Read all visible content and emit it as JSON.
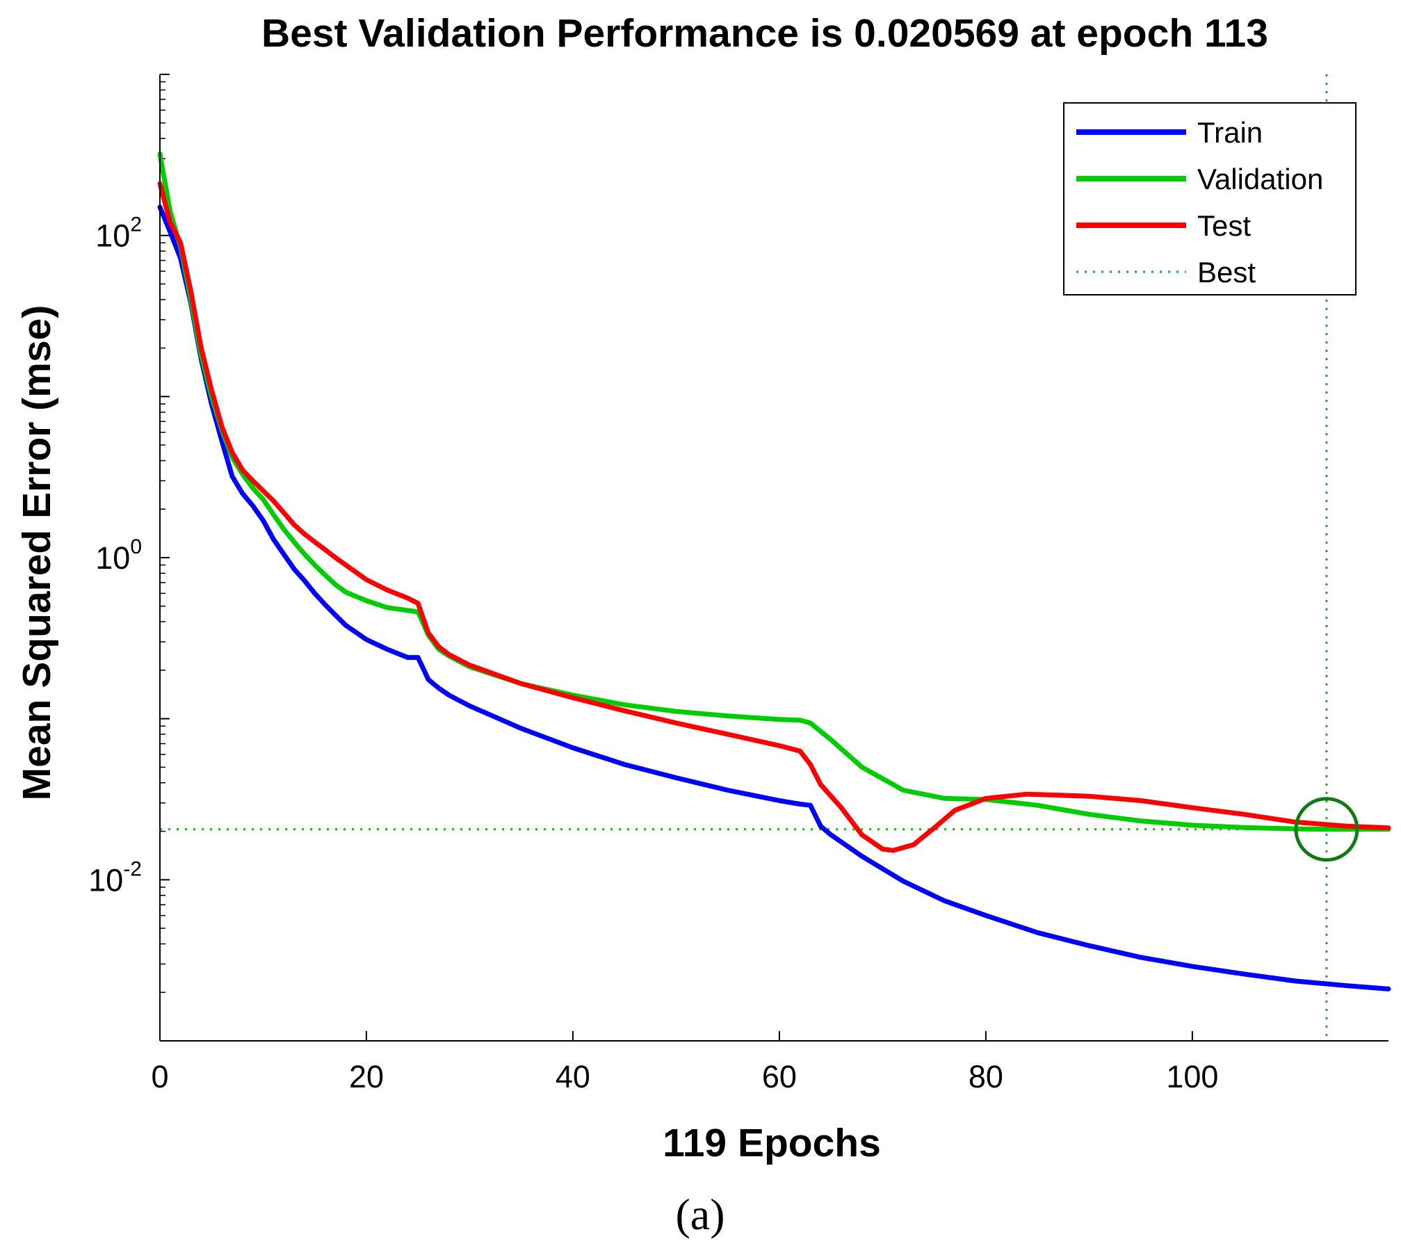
{
  "chart_data": {
    "type": "line",
    "title": "Best Validation Performance is 0.020569 at epoch 113",
    "xlabel": "119 Epochs",
    "ylabel": "Mean Squared Error  (mse)",
    "xlim": [
      0,
      119
    ],
    "ylim_log10": [
      -3.0,
      3.0
    ],
    "yscale": "log",
    "xticks": [
      0,
      20,
      40,
      60,
      80,
      100
    ],
    "xtick_labels": [
      "0",
      "20",
      "40",
      "60",
      "80",
      "100"
    ],
    "yticks": [
      {
        "base": "10",
        "exp": "2",
        "value": 100
      },
      {
        "base": "10",
        "exp": "0",
        "value": 1
      },
      {
        "base": "10",
        "exp": "-2",
        "value": 0.01
      }
    ],
    "panel_label": "(a)",
    "best": {
      "epoch": 113,
      "value": 0.020569,
      "label": "Best"
    },
    "legend_position": "top-right",
    "series": [
      {
        "name": "Train",
        "color": "#0000ff",
        "points": [
          [
            0,
            150
          ],
          [
            1,
            105
          ],
          [
            2,
            72
          ],
          [
            3,
            38
          ],
          [
            4,
            17
          ],
          [
            5,
            9
          ],
          [
            6,
            5.3
          ],
          [
            7,
            3.2
          ],
          [
            8,
            2.5
          ],
          [
            9,
            2.1
          ],
          [
            10,
            1.7
          ],
          [
            11,
            1.3
          ],
          [
            12,
            1.05
          ],
          [
            13,
            0.85
          ],
          [
            14,
            0.72
          ],
          [
            15,
            0.6
          ],
          [
            16,
            0.51
          ],
          [
            17,
            0.44
          ],
          [
            18,
            0.38
          ],
          [
            20,
            0.31
          ],
          [
            22,
            0.27
          ],
          [
            24,
            0.24
          ],
          [
            25,
            0.24
          ],
          [
            26,
            0.175
          ],
          [
            27,
            0.155
          ],
          [
            28,
            0.14
          ],
          [
            30,
            0.12
          ],
          [
            35,
            0.087
          ],
          [
            40,
            0.066
          ],
          [
            45,
            0.052
          ],
          [
            50,
            0.043
          ],
          [
            55,
            0.036
          ],
          [
            60,
            0.031
          ],
          [
            62,
            0.0295
          ],
          [
            63,
            0.029
          ],
          [
            64,
            0.0215
          ],
          [
            65,
            0.019
          ],
          [
            68,
            0.014
          ],
          [
            72,
            0.0098
          ],
          [
            76,
            0.0074
          ],
          [
            80,
            0.006
          ],
          [
            85,
            0.0047
          ],
          [
            90,
            0.0039
          ],
          [
            95,
            0.0033
          ],
          [
            100,
            0.0029
          ],
          [
            105,
            0.0026
          ],
          [
            110,
            0.00235
          ],
          [
            115,
            0.0022
          ],
          [
            119,
            0.0021
          ]
        ]
      },
      {
        "name": "Validation",
        "color": "#00cc00",
        "points": [
          [
            0,
            320
          ],
          [
            1,
            140
          ],
          [
            2,
            85
          ],
          [
            3,
            40
          ],
          [
            4,
            18
          ],
          [
            5,
            10
          ],
          [
            6,
            6.2
          ],
          [
            7,
            4.2
          ],
          [
            8,
            3.3
          ],
          [
            9,
            2.7
          ],
          [
            10,
            2.3
          ],
          [
            11,
            1.85
          ],
          [
            12,
            1.5
          ],
          [
            13,
            1.25
          ],
          [
            14,
            1.05
          ],
          [
            15,
            0.9
          ],
          [
            16,
            0.78
          ],
          [
            17,
            0.68
          ],
          [
            18,
            0.61
          ],
          [
            20,
            0.54
          ],
          [
            22,
            0.49
          ],
          [
            24,
            0.47
          ],
          [
            25,
            0.46
          ],
          [
            26,
            0.33
          ],
          [
            27,
            0.27
          ],
          [
            28,
            0.245
          ],
          [
            30,
            0.21
          ],
          [
            35,
            0.165
          ],
          [
            40,
            0.14
          ],
          [
            45,
            0.122
          ],
          [
            50,
            0.111
          ],
          [
            55,
            0.104
          ],
          [
            60,
            0.099
          ],
          [
            62,
            0.098
          ],
          [
            63,
            0.094
          ],
          [
            65,
            0.074
          ],
          [
            68,
            0.05
          ],
          [
            72,
            0.036
          ],
          [
            76,
            0.032
          ],
          [
            80,
            0.0315
          ],
          [
            85,
            0.029
          ],
          [
            90,
            0.0255
          ],
          [
            95,
            0.0232
          ],
          [
            100,
            0.0218
          ],
          [
            105,
            0.0211
          ],
          [
            110,
            0.0207
          ],
          [
            113,
            0.020569
          ],
          [
            116,
            0.0206
          ],
          [
            119,
            0.0206
          ]
        ]
      },
      {
        "name": "Test",
        "color": "#ff0000",
        "points": [
          [
            0,
            210
          ],
          [
            1,
            120
          ],
          [
            2,
            90
          ],
          [
            3,
            45
          ],
          [
            4,
            20
          ],
          [
            5,
            11
          ],
          [
            6,
            6.5
          ],
          [
            7,
            4.5
          ],
          [
            8,
            3.5
          ],
          [
            9,
            3.0
          ],
          [
            10,
            2.6
          ],
          [
            11,
            2.25
          ],
          [
            12,
            1.9
          ],
          [
            13,
            1.6
          ],
          [
            14,
            1.4
          ],
          [
            15,
            1.25
          ],
          [
            16,
            1.12
          ],
          [
            17,
            1.0
          ],
          [
            18,
            0.9
          ],
          [
            20,
            0.73
          ],
          [
            22,
            0.63
          ],
          [
            24,
            0.56
          ],
          [
            25,
            0.52
          ],
          [
            26,
            0.34
          ],
          [
            27,
            0.28
          ],
          [
            28,
            0.25
          ],
          [
            30,
            0.215
          ],
          [
            35,
            0.165
          ],
          [
            40,
            0.135
          ],
          [
            45,
            0.112
          ],
          [
            50,
            0.094
          ],
          [
            55,
            0.08
          ],
          [
            60,
            0.068
          ],
          [
            62,
            0.063
          ],
          [
            63,
            0.052
          ],
          [
            64,
            0.039
          ],
          [
            66,
            0.028
          ],
          [
            68,
            0.019
          ],
          [
            70,
            0.0155
          ],
          [
            71,
            0.0152
          ],
          [
            73,
            0.0165
          ],
          [
            75,
            0.021
          ],
          [
            77,
            0.027
          ],
          [
            80,
            0.032
          ],
          [
            84,
            0.034
          ],
          [
            90,
            0.033
          ],
          [
            95,
            0.031
          ],
          [
            100,
            0.028
          ],
          [
            105,
            0.0255
          ],
          [
            110,
            0.0228
          ],
          [
            115,
            0.0215
          ],
          [
            119,
            0.021
          ]
        ]
      }
    ]
  }
}
